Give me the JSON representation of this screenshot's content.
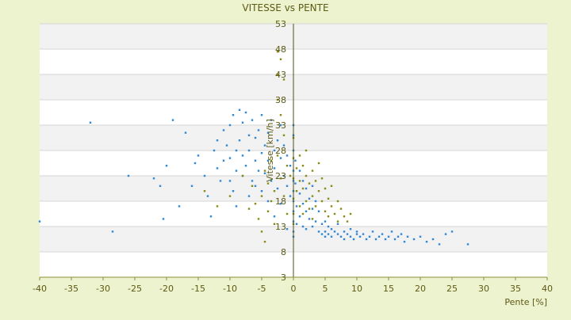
{
  "chart_data": {
    "type": "scatter",
    "title": "VITESSE vs PENTE",
    "xlabel": "Pente [%]",
    "ylabel": "Vitesse [km/h]",
    "xlim": [
      -40,
      40
    ],
    "ylim": [
      3,
      53
    ],
    "x_ticks": [
      -40,
      -35,
      -30,
      -25,
      -20,
      -15,
      -10,
      -5,
      0,
      5,
      10,
      15,
      20,
      25,
      30,
      35,
      40
    ],
    "y_ticks": [
      3,
      8,
      13,
      18,
      23,
      28,
      33,
      38,
      43,
      48,
      53
    ],
    "grid": true,
    "legend": "none",
    "series": [
      {
        "color": "#2f86d6",
        "points": [
          [
            -40,
            14.0
          ],
          [
            -32,
            33.5
          ],
          [
            -28.5,
            12.0
          ],
          [
            -26,
            23.0
          ],
          [
            -22,
            22.5
          ],
          [
            -21,
            21.0
          ],
          [
            -20.5,
            14.5
          ],
          [
            -20,
            25.0
          ],
          [
            -19,
            34.0
          ],
          [
            -18,
            17.0
          ],
          [
            -17,
            31.5
          ],
          [
            -16,
            21.0
          ],
          [
            -15.5,
            25.5
          ],
          [
            -15,
            27.0
          ],
          [
            -14,
            23.0
          ],
          [
            -13.5,
            19.0
          ],
          [
            -13,
            15.0
          ],
          [
            -12.5,
            28.0
          ],
          [
            -12,
            30.0
          ],
          [
            -12,
            24.5
          ],
          [
            -11.5,
            22.0
          ],
          [
            -11,
            26.0
          ],
          [
            -11,
            32.0
          ],
          [
            -10.5,
            29.0
          ],
          [
            -10,
            33.0
          ],
          [
            -10,
            26.5
          ],
          [
            -10,
            22.0
          ],
          [
            -9.5,
            20.0
          ],
          [
            -9.5,
            35.0
          ],
          [
            -9,
            28.0
          ],
          [
            -9,
            24.0
          ],
          [
            -9,
            17.0
          ],
          [
            -8.5,
            36.0
          ],
          [
            -8.5,
            30.0
          ],
          [
            -8,
            27.0
          ],
          [
            -8,
            33.5
          ],
          [
            -8,
            23.0
          ],
          [
            -7.5,
            25.0
          ],
          [
            -7.5,
            35.5
          ],
          [
            -7,
            31.0
          ],
          [
            -7,
            28.0
          ],
          [
            -7,
            19.0
          ],
          [
            -6.5,
            22.0
          ],
          [
            -6.5,
            34.0
          ],
          [
            -6,
            26.0
          ],
          [
            -6,
            30.5
          ],
          [
            -6,
            21.0
          ],
          [
            -5.5,
            24.0
          ],
          [
            -5.5,
            32.0
          ],
          [
            -5,
            27.5
          ],
          [
            -5,
            20.0
          ],
          [
            -5,
            35.0
          ],
          [
            -4.5,
            23.5
          ],
          [
            -4.5,
            29.0
          ],
          [
            -4,
            26.0
          ],
          [
            -4,
            31.5
          ],
          [
            -4,
            18.0
          ],
          [
            -3.5,
            22.0
          ],
          [
            -3.5,
            34.0
          ],
          [
            -3,
            28.0
          ],
          [
            -3,
            24.5
          ],
          [
            -3,
            15.0
          ],
          [
            -2.5,
            30.0
          ],
          [
            -2.5,
            20.5
          ],
          [
            -2,
            26.5
          ],
          [
            -2,
            33.0
          ],
          [
            -2,
            17.5
          ],
          [
            -1.5,
            23.0
          ],
          [
            -1.5,
            29.0
          ],
          [
            -1,
            21.0
          ],
          [
            -1,
            27.0
          ],
          [
            -1,
            12.5
          ],
          [
            -0.5,
            25.0
          ],
          [
            -0.5,
            19.0
          ],
          [
            0,
            31.0
          ],
          [
            0,
            33.0
          ],
          [
            0,
            28.0
          ],
          [
            0,
            24.0
          ],
          [
            0,
            22.0
          ],
          [
            0,
            20.0
          ],
          [
            0,
            18.0
          ],
          [
            0,
            16.0
          ],
          [
            0,
            14.0
          ],
          [
            0,
            12.0
          ],
          [
            0,
            11.0
          ],
          [
            0.3,
            26.0
          ],
          [
            0.3,
            21.5
          ],
          [
            0.5,
            17.0
          ],
          [
            0.5,
            13.5
          ],
          [
            1,
            24.0
          ],
          [
            1,
            19.5
          ],
          [
            1,
            15.0
          ],
          [
            1.5,
            22.0
          ],
          [
            1.5,
            17.5
          ],
          [
            1.5,
            13.0
          ],
          [
            2,
            20.5
          ],
          [
            2,
            16.0
          ],
          [
            2,
            12.5
          ],
          [
            2.5,
            18.5
          ],
          [
            2.5,
            14.5
          ],
          [
            3,
            21.0
          ],
          [
            3,
            16.5
          ],
          [
            3,
            13.0
          ],
          [
            3.5,
            18.0
          ],
          [
            3.5,
            14.0
          ],
          [
            4,
            16.0
          ],
          [
            4,
            12.0
          ],
          [
            4.5,
            13.5
          ],
          [
            4.5,
            11.5
          ],
          [
            5,
            14.0
          ],
          [
            5,
            12.0
          ],
          [
            5,
            11.0
          ],
          [
            5.5,
            13.0
          ],
          [
            5.5,
            11.5
          ],
          [
            6,
            12.5
          ],
          [
            6,
            11.0
          ],
          [
            6.5,
            12.0
          ],
          [
            7,
            11.5
          ],
          [
            7,
            13.5
          ],
          [
            7.5,
            11.0
          ],
          [
            8,
            12.0
          ],
          [
            8,
            10.5
          ],
          [
            8.5,
            11.5
          ],
          [
            9,
            11.0
          ],
          [
            9,
            12.5
          ],
          [
            9.5,
            10.5
          ],
          [
            10,
            11.5
          ],
          [
            10,
            12.0
          ],
          [
            10.5,
            11.0
          ],
          [
            11,
            11.5
          ],
          [
            11.5,
            10.5
          ],
          [
            12,
            11.0
          ],
          [
            12.5,
            12.0
          ],
          [
            13,
            10.5
          ],
          [
            13.5,
            11.0
          ],
          [
            14,
            11.5
          ],
          [
            14.5,
            10.5
          ],
          [
            15,
            11.0
          ],
          [
            15.5,
            12.0
          ],
          [
            16,
            10.5
          ],
          [
            16.5,
            11.0
          ],
          [
            17,
            11.5
          ],
          [
            17.5,
            10.0
          ],
          [
            18,
            11.0
          ],
          [
            19,
            10.5
          ],
          [
            20,
            11.0
          ],
          [
            21,
            10.0
          ],
          [
            22,
            10.5
          ],
          [
            23,
            9.5
          ],
          [
            24,
            11.5
          ],
          [
            25,
            12.0
          ],
          [
            27.5,
            9.5
          ]
        ]
      },
      {
        "color": "#8a8a12",
        "points": [
          [
            -14,
            20.0
          ],
          [
            -12,
            17.0
          ],
          [
            -10,
            19.0
          ],
          [
            -8,
            23.0
          ],
          [
            -7,
            16.5
          ],
          [
            -6.5,
            21.0
          ],
          [
            -6,
            17.5
          ],
          [
            -5.5,
            14.5
          ],
          [
            -5,
            19.0
          ],
          [
            -5,
            12.0
          ],
          [
            -4.5,
            24.0
          ],
          [
            -4.5,
            10.0
          ],
          [
            -4,
            21.5
          ],
          [
            -4,
            16.0
          ],
          [
            -3.5,
            18.0
          ],
          [
            -3.5,
            26.0
          ],
          [
            -3,
            20.0
          ],
          [
            -3,
            13.5
          ],
          [
            -2.5,
            47.5
          ],
          [
            -2.5,
            43.0
          ],
          [
            -2.5,
            38.0
          ],
          [
            -2.5,
            27.0
          ],
          [
            -2,
            46.0
          ],
          [
            -2,
            35.0
          ],
          [
            -2,
            22.5
          ],
          [
            -1.5,
            42.0
          ],
          [
            -1.5,
            31.0
          ],
          [
            -1.5,
            19.0
          ],
          [
            -1,
            25.0
          ],
          [
            -1,
            15.5
          ],
          [
            -0.5,
            23.0
          ],
          [
            0,
            30.5
          ],
          [
            0,
            26.5
          ],
          [
            0,
            22.5
          ],
          [
            0,
            18.5
          ],
          [
            0,
            15.5
          ],
          [
            0,
            13.5
          ],
          [
            0.5,
            24.5
          ],
          [
            0.5,
            20.0
          ],
          [
            1,
            27.0
          ],
          [
            1,
            22.0
          ],
          [
            1,
            17.0
          ],
          [
            1.5,
            25.0
          ],
          [
            1.5,
            20.5
          ],
          [
            1.5,
            15.5
          ],
          [
            2,
            28.0
          ],
          [
            2,
            23.0
          ],
          [
            2,
            18.0
          ],
          [
            2.5,
            21.5
          ],
          [
            2.5,
            16.5
          ],
          [
            3,
            24.0
          ],
          [
            3,
            19.0
          ],
          [
            3,
            14.5
          ],
          [
            3.5,
            22.0
          ],
          [
            3.5,
            17.0
          ],
          [
            4,
            20.0
          ],
          [
            4,
            25.5
          ],
          [
            4.5,
            18.0
          ],
          [
            4.5,
            22.5
          ],
          [
            5,
            16.0
          ],
          [
            5,
            20.5
          ],
          [
            5.5,
            18.5
          ],
          [
            5.5,
            15.0
          ],
          [
            6,
            17.0
          ],
          [
            6,
            21.0
          ],
          [
            6.5,
            15.5
          ],
          [
            7,
            18.0
          ],
          [
            7,
            14.0
          ],
          [
            7.5,
            16.5
          ],
          [
            8,
            15.0
          ],
          [
            8.5,
            14.0
          ],
          [
            9,
            15.5
          ]
        ]
      }
    ]
  }
}
